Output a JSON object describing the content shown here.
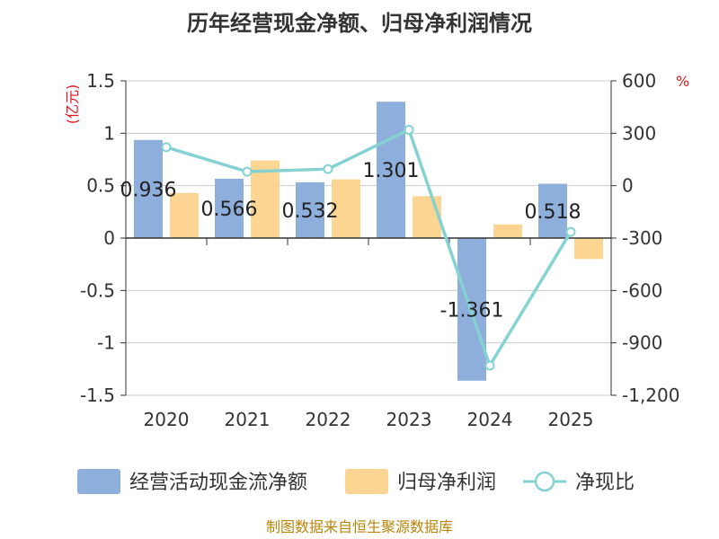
{
  "chart_data": {
    "type": "bar+line",
    "title": "历年经营现金净额、归母净利润情况",
    "categories": [
      "2020",
      "2021",
      "2022",
      "2023",
      "2024",
      "2025"
    ],
    "series": [
      {
        "name": "经营活动现金流净额",
        "kind": "bar",
        "axis": "left",
        "color": "#8eaedb",
        "values": [
          0.936,
          0.566,
          0.532,
          1.301,
          -1.361,
          0.518
        ]
      },
      {
        "name": "归母净利润",
        "kind": "bar",
        "axis": "left",
        "color": "#fdd592",
        "values": [
          0.43,
          0.74,
          0.56,
          0.4,
          0.13,
          -0.2
        ]
      },
      {
        "name": "净现比",
        "kind": "line",
        "axis": "right",
        "color": "#86d2d2",
        "values": [
          220,
          80,
          95,
          320,
          -1030,
          -265
        ]
      }
    ],
    "data_labels": [
      "0.936",
      "0.566",
      "0.532",
      "1.301",
      "-1.361",
      "0.518"
    ],
    "left_axis": {
      "unit": "(亿元)",
      "min": -1.5,
      "max": 1.5,
      "ticks": [
        1.5,
        1,
        0.5,
        0,
        -0.5,
        -1,
        -1.5
      ],
      "tick_labels": [
        "1.5",
        "1",
        "0.5",
        "0",
        "-0.5",
        "-1",
        "-1.5"
      ]
    },
    "right_axis": {
      "unit": "%",
      "min": -1200,
      "max": 600,
      "ticks": [
        600,
        300,
        0,
        -300,
        -600,
        -900,
        -1200
      ],
      "tick_labels": [
        "600",
        "300",
        "0",
        "-300",
        "-600",
        "-900",
        "-1,200"
      ]
    },
    "legend": [
      "经营活动现金流净额",
      "归母净利润",
      "净现比"
    ],
    "grid": true,
    "legend_position": "bottom"
  },
  "source": "制图数据来自恒生聚源数据库"
}
